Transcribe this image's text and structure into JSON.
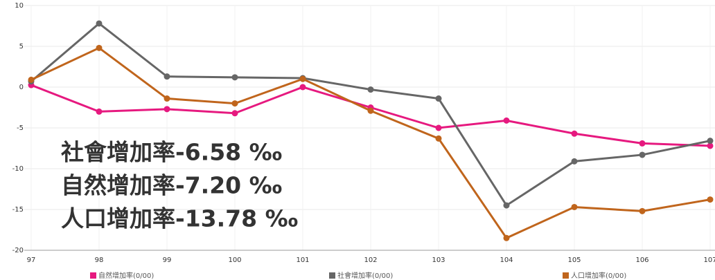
{
  "chart_data": {
    "type": "line",
    "categories": [
      "97",
      "98",
      "99",
      "100",
      "101",
      "102",
      "103",
      "104",
      "105",
      "106",
      "107"
    ],
    "series": [
      {
        "name": "自然增加率(0/00)",
        "color": "#e6197f",
        "values": [
          0.25,
          -3.0,
          -2.7,
          -3.2,
          0,
          -2.5,
          -5.0,
          -4.1,
          -5.7,
          -6.9,
          -7.2
        ]
      },
      {
        "name": "社會增加率(0/00)",
        "color": "#666666",
        "values": [
          0.7,
          7.8,
          1.3,
          1.2,
          1.1,
          -0.3,
          -1.4,
          -14.5,
          -9.1,
          -8.3,
          -6.58
        ]
      },
      {
        "name": "人口增加率(0/00)",
        "color": "#c0651c",
        "values": [
          0.9,
          4.8,
          -1.4,
          -2.0,
          1.0,
          -2.9,
          -6.3,
          -18.5,
          -14.7,
          -15.2,
          -13.78
        ]
      }
    ],
    "ylim": [
      -20,
      10
    ],
    "yticks": [
      -20,
      -15,
      -10,
      -5,
      0,
      5,
      10
    ],
    "grid": true,
    "annotations": [
      "社會增加率-6.58 ‰",
      "自然增加率-7.20 ‰",
      "人口增加率-13.78 ‰"
    ]
  }
}
